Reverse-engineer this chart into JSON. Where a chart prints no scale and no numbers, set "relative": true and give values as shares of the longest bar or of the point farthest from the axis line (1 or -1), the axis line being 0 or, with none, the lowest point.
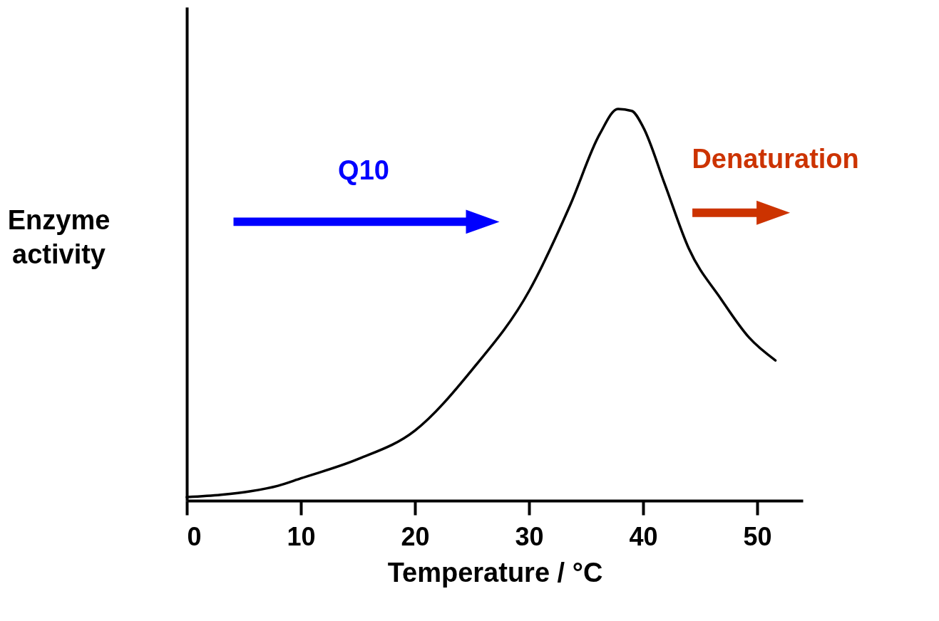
{
  "chart_data": {
    "type": "line",
    "relative": true,
    "xlabel": "Temperature / °C",
    "ylabel": "Enzyme activity",
    "annotations": [
      "Q10",
      "Denaturation"
    ],
    "xlim": [
      0,
      54
    ],
    "xticks": [
      0,
      10,
      20,
      30,
      40,
      50
    ],
    "tick_labels": "x",
    "grid": false,
    "marker": "none",
    "line_style": "solid",
    "series": [
      {
        "color": "#000000",
        "x": [
          0,
          3,
          5.6,
          8,
          10,
          15,
          20,
          25,
          30,
          33.6,
          36.2,
          37.8,
          39,
          40,
          41.9,
          44,
          46.8,
          49.3,
          51.6
        ],
        "values": [
          0.009,
          0.015,
          0.024,
          0.038,
          0.057,
          0.106,
          0.179,
          0.334,
          0.535,
          0.754,
          0.936,
          1.0,
          0.995,
          0.954,
          0.808,
          0.644,
          0.516,
          0.416,
          0.358
        ]
      }
    ]
  }
}
